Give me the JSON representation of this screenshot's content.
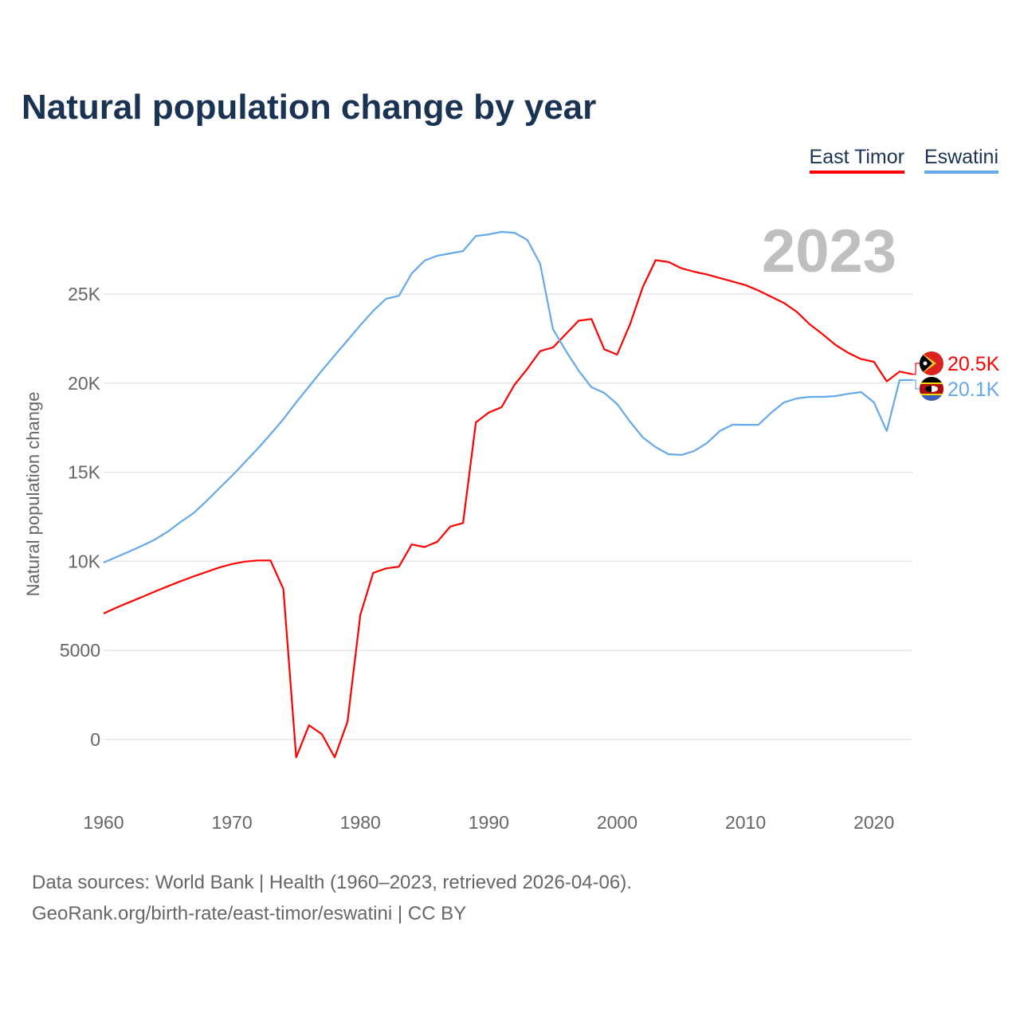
{
  "title": "Natural population change by year",
  "year_label": "2023",
  "legend": [
    "East Timor",
    "Eswatini"
  ],
  "colors": {
    "East Timor": "#ff0000",
    "Eswatini": "#64a8ee"
  },
  "source_line1": "Data sources: World Bank | Health (1960–2023, retrieved 2026-04-06).",
  "source_line2": "GeoRank.org/birth-rate/east-timor/eswatini | CC BY",
  "chart_data": {
    "type": "line",
    "title": "Natural population change by year",
    "xlabel": "",
    "ylabel": "Natural population change",
    "xlim": [
      1960,
      2023
    ],
    "ylim": [
      -2500,
      30000
    ],
    "xticks": [
      1960,
      1970,
      1980,
      1990,
      2000,
      2010,
      2020
    ],
    "yticks": [
      {
        "v": 0,
        "label": "0"
      },
      {
        "v": 5000,
        "label": "5000"
      },
      {
        "v": 10000,
        "label": "10K"
      },
      {
        "v": 15000,
        "label": "15K"
      },
      {
        "v": 20000,
        "label": "20K"
      },
      {
        "v": 25000,
        "label": "25K"
      }
    ],
    "grid": true,
    "legend_position": "top-right",
    "x_start": 1960,
    "series": [
      {
        "name": "East Timor",
        "end_label": "20.5K",
        "flag": "east-timor-flag",
        "values": [
          7070,
          7400,
          7700,
          8000,
          8300,
          8600,
          8880,
          9150,
          9400,
          9650,
          9850,
          9980,
          10050,
          10050,
          8450,
          -1000,
          800,
          300,
          -1000,
          1000,
          7000,
          9350,
          9600,
          9700,
          10950,
          10800,
          11100,
          11950,
          12150,
          17800,
          18350,
          18650,
          19900,
          20800,
          21800,
          22000,
          22750,
          23500,
          23600,
          21900,
          21600,
          23300,
          25400,
          26900,
          26800,
          26450,
          26250,
          26100,
          25900,
          25700,
          25500,
          25200,
          24850,
          24500,
          24000,
          23300,
          22750,
          22150,
          21700,
          21350,
          21200,
          20100,
          20650,
          20500
        ]
      },
      {
        "name": "Eswatini",
        "end_label": "20.1K",
        "flag": "eswatini-flag",
        "values": [
          9930,
          10240,
          10550,
          10870,
          11220,
          11670,
          12210,
          12700,
          13370,
          14090,
          14800,
          15560,
          16320,
          17130,
          17980,
          18920,
          19810,
          20700,
          21560,
          22400,
          23250,
          24050,
          24730,
          24900,
          26160,
          26880,
          27150,
          27280,
          27410,
          28260,
          28350,
          28490,
          28440,
          28040,
          26700,
          23030,
          21820,
          20700,
          19770,
          19450,
          18830,
          17840,
          16950,
          16410,
          16010,
          15970,
          16190,
          16640,
          17310,
          17670,
          17660,
          17660,
          18340,
          18920,
          19140,
          19230,
          19230,
          19270,
          19400,
          19500,
          18920,
          17310,
          20170,
          20170
        ]
      }
    ]
  }
}
